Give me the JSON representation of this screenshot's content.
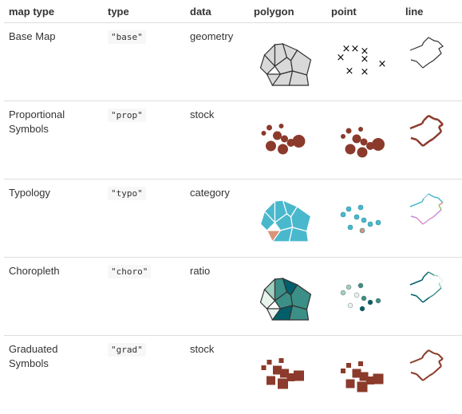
{
  "header": {
    "map_type": "map type",
    "type": "type",
    "data": "data",
    "polygon": "polygon",
    "point": "point",
    "line": "line"
  },
  "rows": [
    {
      "map_type": "Base Map",
      "type": "\"base\"",
      "data": "geometry",
      "style": "base"
    },
    {
      "map_type": "Proportional Symbols",
      "type": "\"prop\"",
      "data": "stock",
      "style": "prop"
    },
    {
      "map_type": "Typology",
      "type": "\"typo\"",
      "data": "category",
      "style": "typo"
    },
    {
      "map_type": "Choropleth",
      "type": "\"choro\"",
      "data": "ratio",
      "style": "choro"
    },
    {
      "map_type": "Graduated Symbols",
      "type": "\"grad\"",
      "data": "stock",
      "style": "grad"
    }
  ],
  "colors": {
    "base_fill": "#d9d9d9",
    "stroke": "#333333",
    "symbol": "#8b3a2b",
    "typo_blue": "#4ab8cc",
    "typo_salmon": "#d9957a",
    "choro_dark": "#005f6b",
    "choro_mid": "#3b8f86",
    "choro_light": "#9ecfbf",
    "choro_pale": "#e6f4ec"
  }
}
